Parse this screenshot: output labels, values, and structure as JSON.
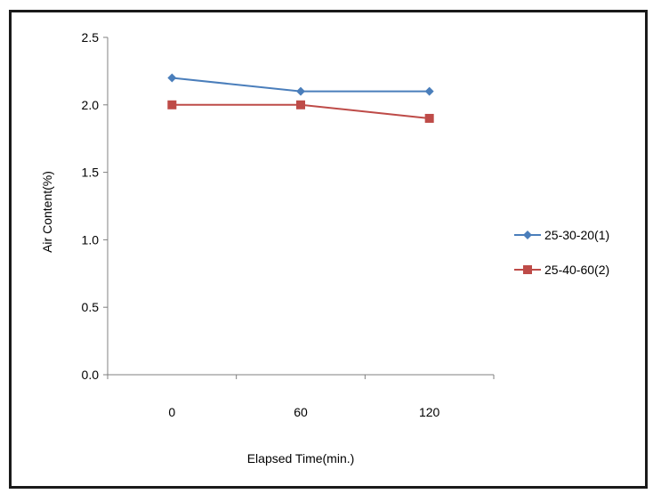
{
  "chart_data": {
    "type": "line",
    "title": "",
    "xlabel": "Elapsed Time(min.)",
    "ylabel": "Air Content(%)",
    "categories": [
      "0",
      "60",
      "120"
    ],
    "ylim": [
      0.0,
      2.5
    ],
    "yticks": [
      "0.0",
      "0.5",
      "1.0",
      "1.5",
      "2.0",
      "2.5"
    ],
    "grid": false,
    "legend_position": "right",
    "series": [
      {
        "name": "25-30-20(1)",
        "values": [
          2.2,
          2.1,
          2.1
        ],
        "color": "#4a7ebb",
        "marker": "diamond"
      },
      {
        "name": "25-40-60(2)",
        "values": [
          2.0,
          2.0,
          1.9
        ],
        "color": "#be4b48",
        "marker": "square"
      }
    ]
  }
}
